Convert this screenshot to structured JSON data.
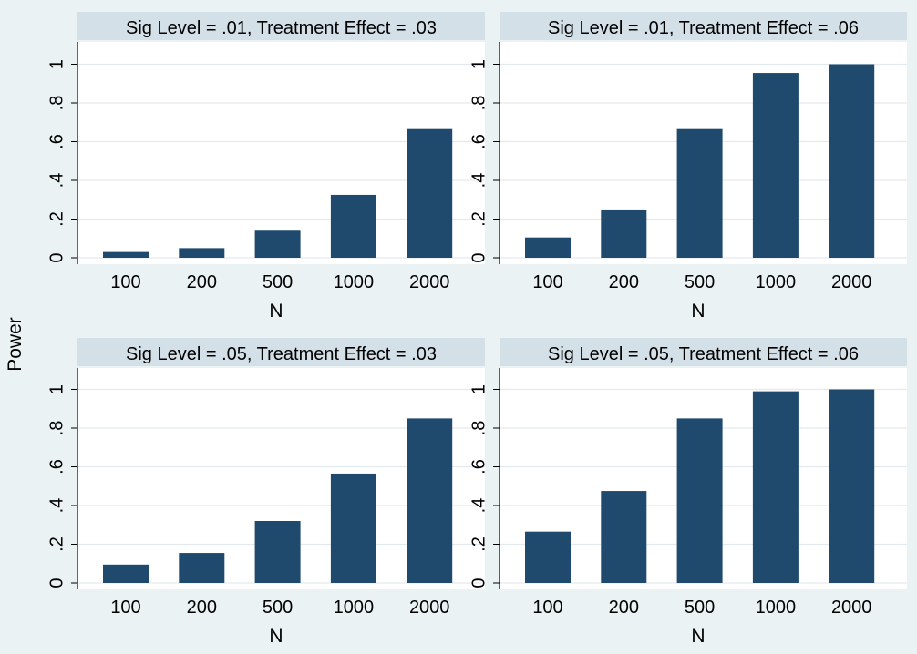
{
  "figure": {
    "ylabel": "Power",
    "background": "#eaf2f3"
  },
  "colors": {
    "bar": "#1f4a6e",
    "strip": "#d4e0e8",
    "plot_bg": "#ffffff",
    "grid": "#e3eaee"
  },
  "chart_data": [
    {
      "type": "bar",
      "title": "Sig Level = .01, Treatment Effect = .03",
      "xlabel": "N",
      "categories": [
        "100",
        "200",
        "500",
        "1000",
        "2000"
      ],
      "values": [
        0.03,
        0.05,
        0.14,
        0.325,
        0.665
      ],
      "ylim": [
        0,
        1.1
      ],
      "yticks": [
        0,
        0.2,
        0.4,
        0.6,
        0.8,
        1
      ],
      "ytick_labels": [
        "0",
        ".2",
        ".4",
        ".6",
        ".8",
        "1"
      ],
      "grid": true
    },
    {
      "type": "bar",
      "title": "Sig Level = .01, Treatment Effect = .06",
      "xlabel": "N",
      "categories": [
        "100",
        "200",
        "500",
        "1000",
        "2000"
      ],
      "values": [
        0.105,
        0.245,
        0.665,
        0.955,
        1.0
      ],
      "ylim": [
        0,
        1.1
      ],
      "yticks": [
        0,
        0.2,
        0.4,
        0.6,
        0.8,
        1
      ],
      "ytick_labels": [
        "0",
        ".2",
        ".4",
        ".6",
        ".8",
        "1"
      ],
      "grid": true
    },
    {
      "type": "bar",
      "title": "Sig Level = .05, Treatment Effect = .03",
      "xlabel": "N",
      "categories": [
        "100",
        "200",
        "500",
        "1000",
        "2000"
      ],
      "values": [
        0.095,
        0.155,
        0.32,
        0.565,
        0.85
      ],
      "ylim": [
        0,
        1.1
      ],
      "yticks": [
        0,
        0.2,
        0.4,
        0.6,
        0.8,
        1
      ],
      "ytick_labels": [
        "0",
        ".2",
        ".4",
        ".6",
        ".8",
        "1"
      ],
      "grid": true
    },
    {
      "type": "bar",
      "title": "Sig Level = .05, Treatment Effect = .06",
      "xlabel": "N",
      "categories": [
        "100",
        "200",
        "500",
        "1000",
        "2000"
      ],
      "values": [
        0.265,
        0.475,
        0.85,
        0.99,
        1.0
      ],
      "ylim": [
        0,
        1.1
      ],
      "yticks": [
        0,
        0.2,
        0.4,
        0.6,
        0.8,
        1
      ],
      "ytick_labels": [
        "0",
        ".2",
        ".4",
        ".6",
        ".8",
        "1"
      ],
      "grid": true
    }
  ]
}
